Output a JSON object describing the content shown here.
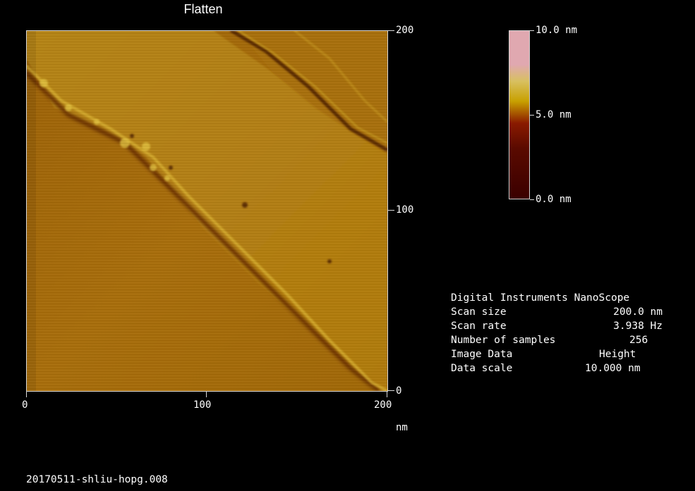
{
  "title": "Flatten",
  "image": {
    "x_axis_ticks": [
      "0",
      "100",
      "200"
    ],
    "y_axis_ticks": [
      "200",
      "100",
      "0"
    ],
    "x_unit": "nm"
  },
  "colorbar": {
    "labels": [
      "10.0 nm",
      "5.0 nm",
      "0.0 nm"
    ],
    "colors": {
      "low": "#3a0000",
      "mid_low": "#8a1a00",
      "mid": "#c8a000",
      "mid_high": "#d8c060",
      "high": "#e0a8b0"
    }
  },
  "info": {
    "heading": "Digital Instruments NanoScope",
    "rows": [
      {
        "label": "Scan size",
        "value": "200.0 nm"
      },
      {
        "label": "Scan rate",
        "value": "3.938 Hz"
      },
      {
        "label": "Number of samples",
        "value": "256"
      },
      {
        "label": "Image Data",
        "value": "Height"
      },
      {
        "label": "Data scale",
        "value": "10.000 nm"
      }
    ]
  },
  "filename": "20170511-shliu-hopg.008"
}
